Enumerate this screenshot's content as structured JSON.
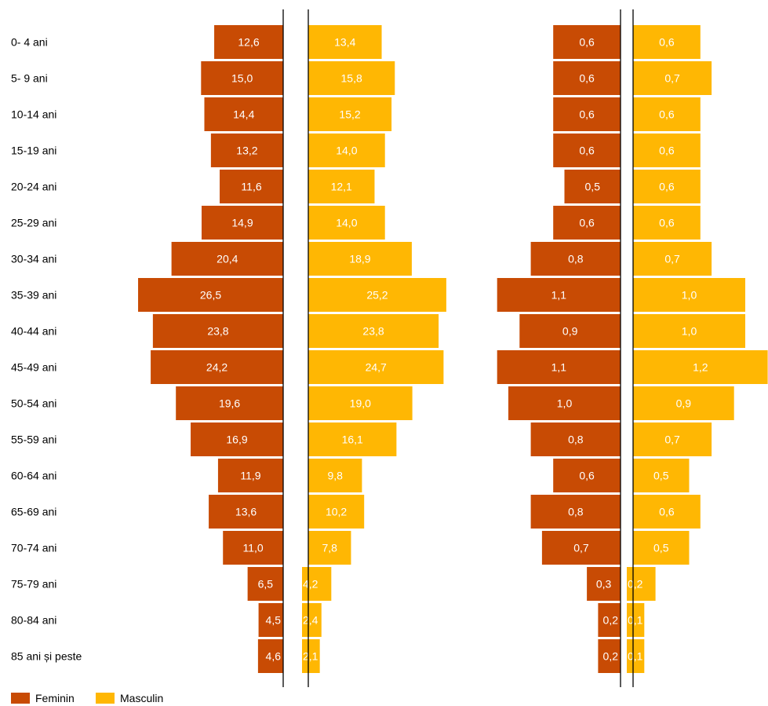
{
  "chart_data": {
    "type": "bar",
    "orientation": "horizontal",
    "layout": "population-pyramid",
    "categories": [
      "0- 4 ani",
      "5- 9 ani",
      "10-14 ani",
      "15-19 ani",
      "20-24 ani",
      "25-29 ani",
      "30-34 ani",
      "35-39 ani",
      "40-44 ani",
      "45-49 ani",
      "50-54 ani",
      "55-59 ani",
      "60-64 ani",
      "65-69 ani",
      "70-74 ani",
      "75-79 ani",
      "80-84 ani",
      "85 ani și peste"
    ],
    "panels": [
      {
        "series": [
          {
            "name": "Feminin",
            "labels": [
              "12,6",
              "15,0",
              "14,4",
              "13,2",
              "11,6",
              "14,9",
              "20,4",
              "26,5",
              "23,8",
              "24,2",
              "19,6",
              "16,9",
              "11,9",
              "13,6",
              "11,0",
              "6,5",
              "4,5",
              "4,6"
            ],
            "values": [
              12.6,
              15.0,
              14.4,
              13.2,
              11.6,
              14.9,
              20.4,
              26.5,
              23.8,
              24.2,
              19.6,
              16.9,
              11.9,
              13.6,
              11.0,
              6.5,
              4.5,
              4.6
            ]
          },
          {
            "name": "Masculin",
            "labels": [
              "13,4",
              "15,8",
              "15,2",
              "14,0",
              "12,1",
              "14,0",
              "18,9",
              "25,2",
              "23,8",
              "24,7",
              "19,0",
              "16,1",
              "9,8",
              "10,2",
              "7,8",
              "4,2",
              "2,4",
              "2,1"
            ],
            "values": [
              13.4,
              15.8,
              15.2,
              14.0,
              12.1,
              14.0,
              18.9,
              25.2,
              23.8,
              24.7,
              19.0,
              16.1,
              9.8,
              10.2,
              7.8,
              4.2,
              2.4,
              2.1
            ]
          }
        ]
      },
      {
        "series": [
          {
            "name": "Feminin",
            "labels": [
              "0,6",
              "0,6",
              "0,6",
              "0,6",
              "0,5",
              "0,6",
              "0,8",
              "1,1",
              "0,9",
              "1,1",
              "1,0",
              "0,8",
              "0,6",
              "0,8",
              "0,7",
              "0,3",
              "0,2",
              "0,2"
            ],
            "values": [
              0.6,
              0.6,
              0.6,
              0.6,
              0.5,
              0.6,
              0.8,
              1.1,
              0.9,
              1.1,
              1.0,
              0.8,
              0.6,
              0.8,
              0.7,
              0.3,
              0.2,
              0.2
            ]
          },
          {
            "name": "Masculin",
            "labels": [
              "0,6",
              "0,7",
              "0,6",
              "0,6",
              "0,6",
              "0,6",
              "0,7",
              "1,0",
              "1,0",
              "1,2",
              "0,9",
              "0,7",
              "0,5",
              "0,6",
              "0,5",
              "0,2",
              "0,1",
              "0,1"
            ],
            "values": [
              0.6,
              0.7,
              0.6,
              0.6,
              0.6,
              0.6,
              0.7,
              1.0,
              1.0,
              1.2,
              0.9,
              0.7,
              0.5,
              0.6,
              0.5,
              0.2,
              0.1,
              0.1
            ]
          }
        ]
      }
    ],
    "legend": {
      "position": "bottom-left",
      "items": [
        "Feminin",
        "Masculin"
      ]
    },
    "grid": false,
    "colors": {
      "Feminin": "#c84b04",
      "Masculin": "#ffb703"
    }
  }
}
